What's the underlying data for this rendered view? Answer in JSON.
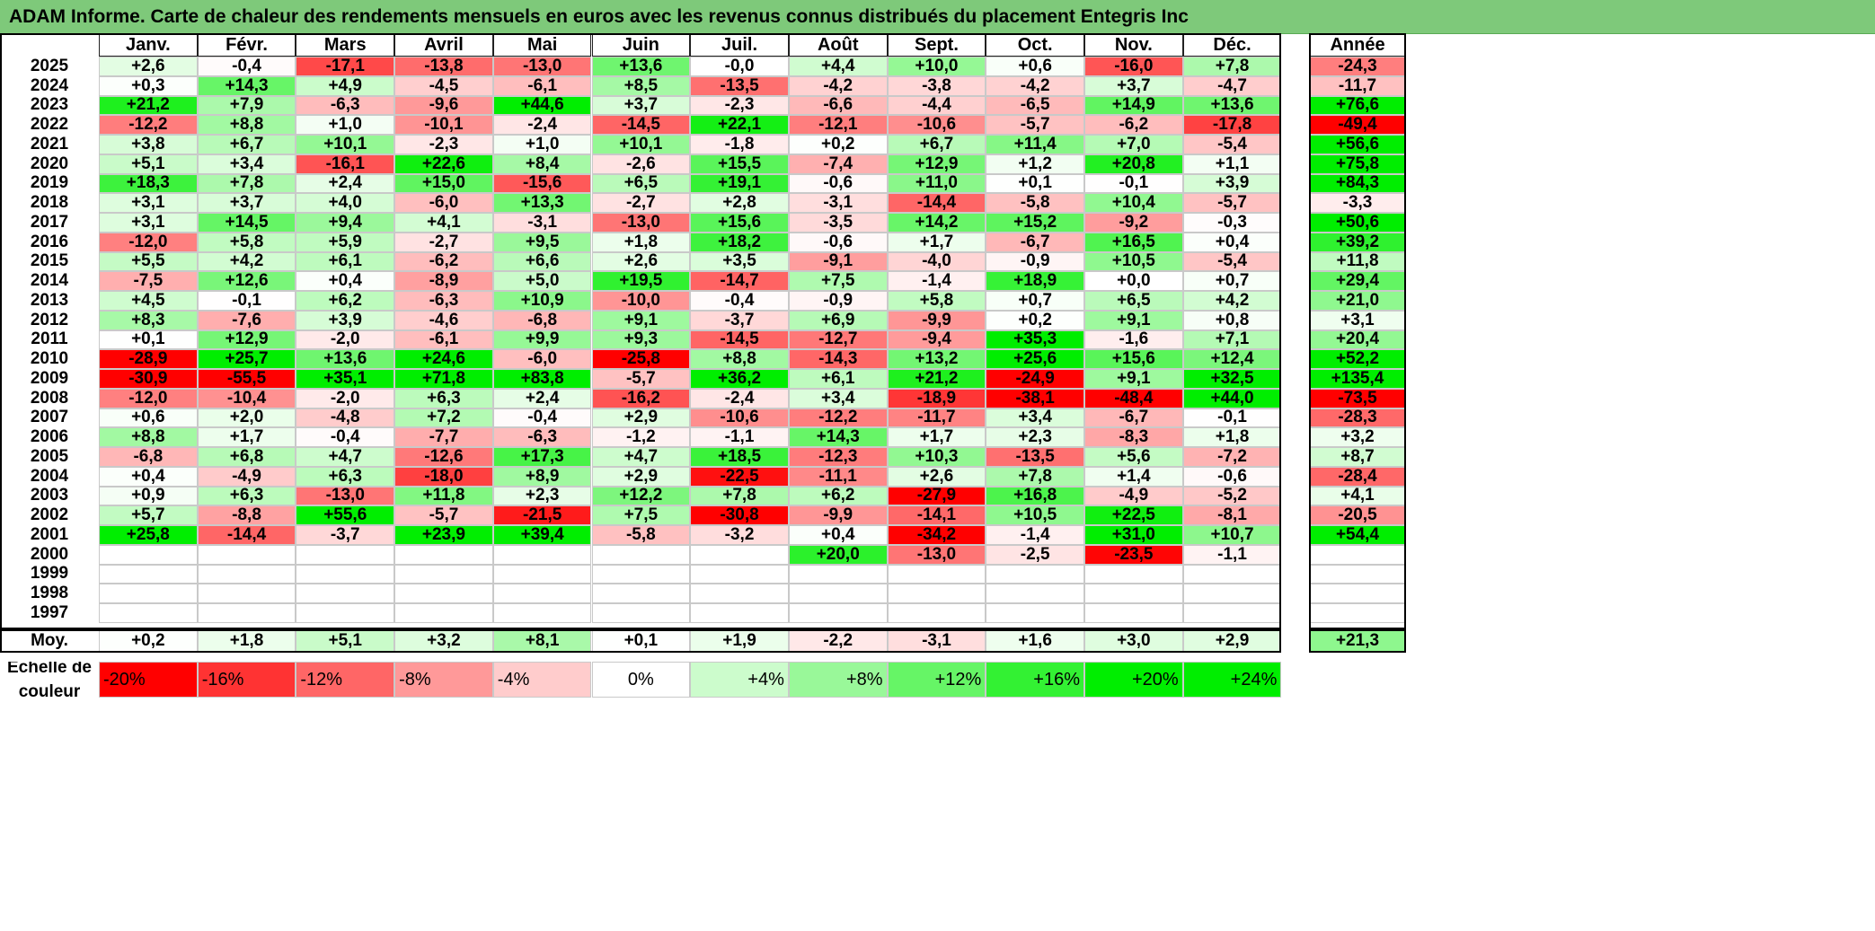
{
  "title": "ADAM Informe. Carte de chaleur des rendements mensuels en euros avec les revenus connus distribués du placement Entegris Inc",
  "chart_data": {
    "type": "heatmap",
    "months": [
      "Janv.",
      "Févr.",
      "Mars",
      "Avril",
      "Mai",
      "Juin",
      "Juil.",
      "Août",
      "Sept.",
      "Oct.",
      "Nov.",
      "Déc."
    ],
    "year_header": "Année",
    "rows": [
      {
        "year": "2025",
        "values": [
          "+2,6",
          "-0,4",
          "-17,1",
          "-13,8",
          "-13,0",
          "+13,6",
          "-0,0",
          "+4,4",
          "+10,0",
          "+0,6",
          "-16,0",
          "+7,8"
        ],
        "annual": "-24,3"
      },
      {
        "year": "2024",
        "values": [
          "+0,3",
          "+14,3",
          "+4,9",
          "-4,5",
          "-6,1",
          "+8,5",
          "-13,5",
          "-4,2",
          "-3,8",
          "-4,2",
          "+3,7",
          "-4,7"
        ],
        "annual": "-11,7"
      },
      {
        "year": "2023",
        "values": [
          "+21,2",
          "+7,9",
          "-6,3",
          "-9,6",
          "+44,6",
          "+3,7",
          "-2,3",
          "-6,6",
          "-4,4",
          "-6,5",
          "+14,9",
          "+13,6"
        ],
        "annual": "+76,6"
      },
      {
        "year": "2022",
        "values": [
          "-12,2",
          "+8,8",
          "+1,0",
          "-10,1",
          "-2,4",
          "-14,5",
          "+22,1",
          "-12,1",
          "-10,6",
          "-5,7",
          "-6,2",
          "-17,8"
        ],
        "annual": "-49,4"
      },
      {
        "year": "2021",
        "values": [
          "+3,8",
          "+6,7",
          "+10,1",
          "-2,3",
          "+1,0",
          "+10,1",
          "-1,8",
          "+0,2",
          "+6,7",
          "+11,4",
          "+7,0",
          "-5,4"
        ],
        "annual": "+56,6"
      },
      {
        "year": "2020",
        "values": [
          "+5,1",
          "+3,4",
          "-16,1",
          "+22,6",
          "+8,4",
          "-2,6",
          "+15,5",
          "-7,4",
          "+12,9",
          "+1,2",
          "+20,8",
          "+1,1"
        ],
        "annual": "+75,8"
      },
      {
        "year": "2019",
        "values": [
          "+18,3",
          "+7,8",
          "+2,4",
          "+15,0",
          "-15,6",
          "+6,5",
          "+19,1",
          "-0,6",
          "+11,0",
          "+0,1",
          "-0,1",
          "+3,9"
        ],
        "annual": "+84,3"
      },
      {
        "year": "2018",
        "values": [
          "+3,1",
          "+3,7",
          "+4,0",
          "-6,0",
          "+13,3",
          "-2,7",
          "+2,8",
          "-3,1",
          "-14,4",
          "-5,8",
          "+10,4",
          "-5,7"
        ],
        "annual": "-3,3"
      },
      {
        "year": "2017",
        "values": [
          "+3,1",
          "+14,5",
          "+9,4",
          "+4,1",
          "-3,1",
          "-13,0",
          "+15,6",
          "-3,5",
          "+14,2",
          "+15,2",
          "-9,2",
          "-0,3"
        ],
        "annual": "+50,6"
      },
      {
        "year": "2016",
        "values": [
          "-12,0",
          "+5,8",
          "+5,9",
          "-2,7",
          "+9,5",
          "+1,8",
          "+18,2",
          "-0,6",
          "+1,7",
          "-6,7",
          "+16,5",
          "+0,4"
        ],
        "annual": "+39,2"
      },
      {
        "year": "2015",
        "values": [
          "+5,5",
          "+4,2",
          "+6,1",
          "-6,2",
          "+6,6",
          "+2,6",
          "+3,5",
          "-9,1",
          "-4,0",
          "-0,9",
          "+10,5",
          "-5,4"
        ],
        "annual": "+11,8"
      },
      {
        "year": "2014",
        "values": [
          "-7,5",
          "+12,6",
          "+0,4",
          "-8,9",
          "+5,0",
          "+19,5",
          "-14,7",
          "+7,5",
          "-1,4",
          "+18,9",
          "+0,0",
          "+0,7"
        ],
        "annual": "+29,4"
      },
      {
        "year": "2013",
        "values": [
          "+4,5",
          "-0,1",
          "+6,2",
          "-6,3",
          "+10,9",
          "-10,0",
          "-0,4",
          "-0,9",
          "+5,8",
          "+0,7",
          "+6,5",
          "+4,2"
        ],
        "annual": "+21,0"
      },
      {
        "year": "2012",
        "values": [
          "+8,3",
          "-7,6",
          "+3,9",
          "-4,6",
          "-6,8",
          "+9,1",
          "-3,7",
          "+6,9",
          "-9,9",
          "+0,2",
          "+9,1",
          "+0,8"
        ],
        "annual": "+3,1"
      },
      {
        "year": "2011",
        "values": [
          "+0,1",
          "+12,9",
          "-2,0",
          "-6,1",
          "+9,9",
          "+9,3",
          "-14,5",
          "-12,7",
          "-9,4",
          "+35,3",
          "-1,6",
          "+7,1"
        ],
        "annual": "+20,4"
      },
      {
        "year": "2010",
        "values": [
          "-28,9",
          "+25,7",
          "+13,6",
          "+24,6",
          "-6,0",
          "-25,8",
          "+8,8",
          "-14,3",
          "+13,2",
          "+25,6",
          "+15,6",
          "+12,4"
        ],
        "annual": "+52,2"
      },
      {
        "year": "2009",
        "values": [
          "-30,9",
          "-55,5",
          "+35,1",
          "+71,8",
          "+83,8",
          "-5,7",
          "+36,2",
          "+6,1",
          "+21,2",
          "-24,9",
          "+9,1",
          "+32,5"
        ],
        "annual": "+135,4"
      },
      {
        "year": "2008",
        "values": [
          "-12,0",
          "-10,4",
          "-2,0",
          "+6,3",
          "+2,4",
          "-16,2",
          "-2,4",
          "+3,4",
          "-18,9",
          "-38,1",
          "-48,4",
          "+44,0"
        ],
        "annual": "-73,5"
      },
      {
        "year": "2007",
        "values": [
          "+0,6",
          "+2,0",
          "-4,8",
          "+7,2",
          "-0,4",
          "+2,9",
          "-10,6",
          "-12,2",
          "-11,7",
          "+3,4",
          "-6,7",
          "-0,1"
        ],
        "annual": "-28,3"
      },
      {
        "year": "2006",
        "values": [
          "+8,8",
          "+1,7",
          "-0,4",
          "-7,7",
          "-6,3",
          "-1,2",
          "-1,1",
          "+14,3",
          "+1,7",
          "+2,3",
          "-8,3",
          "+1,8"
        ],
        "annual": "+3,2"
      },
      {
        "year": "2005",
        "values": [
          "-6,8",
          "+6,8",
          "+4,7",
          "-12,6",
          "+17,3",
          "+4,7",
          "+18,5",
          "-12,3",
          "+10,3",
          "-13,5",
          "+5,6",
          "-7,2"
        ],
        "annual": "+8,7"
      },
      {
        "year": "2004",
        "values": [
          "+0,4",
          "-4,9",
          "+6,3",
          "-18,0",
          "+8,9",
          "+2,9",
          "-22,5",
          "-11,1",
          "+2,6",
          "+7,8",
          "+1,4",
          "-0,6"
        ],
        "annual": "-28,4"
      },
      {
        "year": "2003",
        "values": [
          "+0,9",
          "+6,3",
          "-13,0",
          "+11,8",
          "+2,3",
          "+12,2",
          "+7,8",
          "+6,2",
          "-27,9",
          "+16,8",
          "-4,9",
          "-5,2"
        ],
        "annual": "+4,1"
      },
      {
        "year": "2002",
        "values": [
          "+5,7",
          "-8,8",
          "+55,6",
          "-5,7",
          "-21,5",
          "+7,5",
          "-30,8",
          "-9,9",
          "-14,1",
          "+10,5",
          "+22,5",
          "-8,1"
        ],
        "annual": "-20,5"
      },
      {
        "year": "2001",
        "values": [
          "+25,8",
          "-14,4",
          "-3,7",
          "+23,9",
          "+39,4",
          "-5,8",
          "-3,2",
          "+0,4",
          "-34,2",
          "-1,4",
          "+31,0",
          "+10,7"
        ],
        "annual": "+54,4"
      },
      {
        "year": "2000",
        "values": [
          "",
          "",
          "",
          "",
          "",
          "",
          "",
          "+20,0",
          "-13,0",
          "-2,5",
          "-23,5",
          "-1,1"
        ],
        "annual": ""
      },
      {
        "year": "1999",
        "values": [
          "",
          "",
          "",
          "",
          "",
          "",
          "",
          "",
          "",
          "",
          "",
          ""
        ],
        "annual": ""
      },
      {
        "year": "1998",
        "values": [
          "",
          "",
          "",
          "",
          "",
          "",
          "",
          "",
          "",
          "",
          "",
          ""
        ],
        "annual": ""
      },
      {
        "year": "1997",
        "values": [
          "",
          "",
          "",
          "",
          "",
          "",
          "",
          "",
          "",
          "",
          "",
          ""
        ],
        "annual": ""
      }
    ],
    "average": {
      "label": "Moy.",
      "values": [
        "+0,2",
        "+1,8",
        "+5,1",
        "+3,2",
        "+8,1",
        "+0,1",
        "+1,9",
        "-2,2",
        "-3,1",
        "+1,6",
        "+3,0",
        "+2,9"
      ],
      "annual": "+21,3"
    },
    "color_scale": {
      "label": "Echelle de couleur",
      "stops": [
        "-20%",
        "-16%",
        "-12%",
        "-8%",
        "-4%",
        "0%",
        "+4%",
        "+8%",
        "+12%",
        "+16%",
        "+20%",
        "+24%"
      ],
      "negative_color": "#ff0000",
      "neutral_color": "#ffffff",
      "positive_color": "#00ee00"
    }
  }
}
